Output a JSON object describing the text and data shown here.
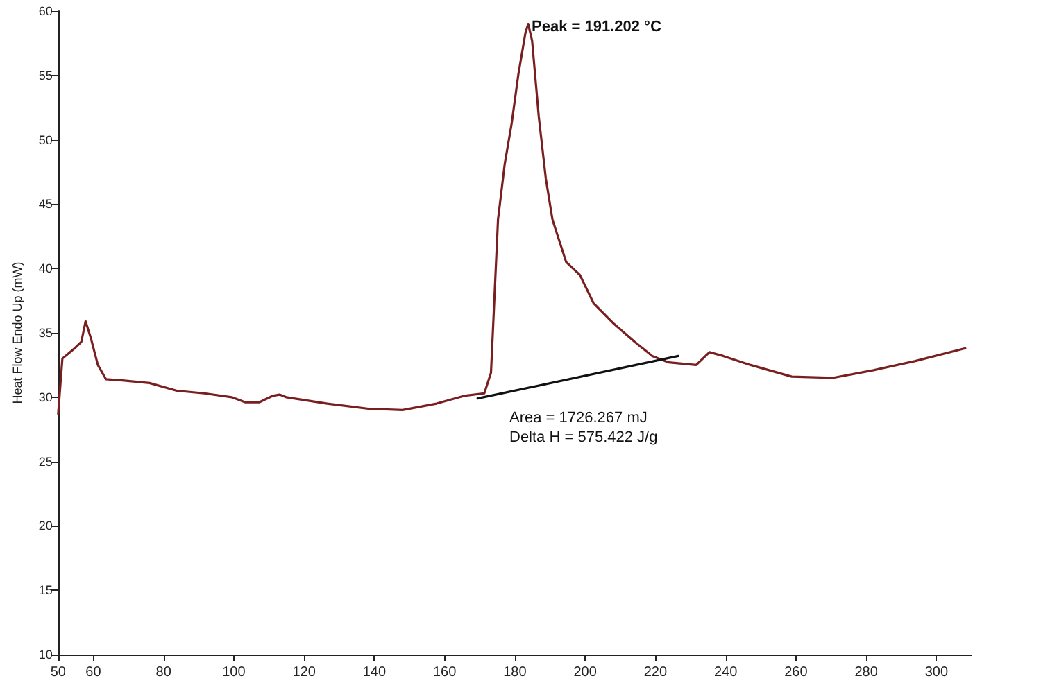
{
  "chart_data": {
    "type": "line",
    "ylabel": "Heat Flow Endo Up (mW)",
    "xlim": [
      50,
      310
    ],
    "xticks": [
      50,
      60,
      80,
      100,
      120,
      140,
      160,
      180,
      200,
      220,
      240,
      260,
      280,
      300
    ],
    "ylim": [
      10,
      60
    ],
    "yticks": [
      10,
      15,
      20,
      25,
      30,
      35,
      40,
      45,
      50,
      55,
      60
    ],
    "grid": false,
    "marker": "none",
    "line_style": "solid",
    "annotations": [
      "Peak = 191.202 °C",
      "Area = 1726.267 mJ",
      "Delta H = 575.422 J/g"
    ],
    "series": [
      {
        "color": "#7a1f1f",
        "x": [
          50,
          51.2,
          54.7,
          56.6,
          57.8,
          59.3,
          61.3,
          63.6,
          68.3,
          76.0,
          83.8,
          91.6,
          99.4,
          103.3,
          107.2,
          111.0,
          113.0,
          114.9,
          126.6,
          138.3,
          148.0,
          157.7,
          165.5,
          171.3,
          173.2,
          175.2,
          177.1,
          179.1,
          181.0,
          183.0,
          183.8,
          184.9,
          186.8,
          188.8,
          190.7,
          194.6,
          198.5,
          202.4,
          208.2,
          214.1,
          219.1,
          223.8,
          231.6,
          235.4,
          239.3,
          247.1,
          258.8,
          270.4,
          282.1,
          293.8,
          308.2
        ],
        "values": [
          28.7,
          33.0,
          33.8,
          34.3,
          35.9,
          34.6,
          32.5,
          31.4,
          31.3,
          31.1,
          30.5,
          30.3,
          30.0,
          29.6,
          29.6,
          30.1,
          30.2,
          30.0,
          29.5,
          29.1,
          29.0,
          29.5,
          30.1,
          30.3,
          31.9,
          43.8,
          48.1,
          51.3,
          55.1,
          58.3,
          59.0,
          57.7,
          51.8,
          47.0,
          43.8,
          40.5,
          39.5,
          37.3,
          35.7,
          34.3,
          33.2,
          32.7,
          32.5,
          33.5,
          33.2,
          32.5,
          31.6,
          31.5,
          32.1,
          32.8,
          33.8
        ]
      },
      {
        "color": "#111111",
        "x": [
          169.4,
          226.5
        ],
        "values": [
          29.9,
          33.2
        ]
      }
    ]
  }
}
